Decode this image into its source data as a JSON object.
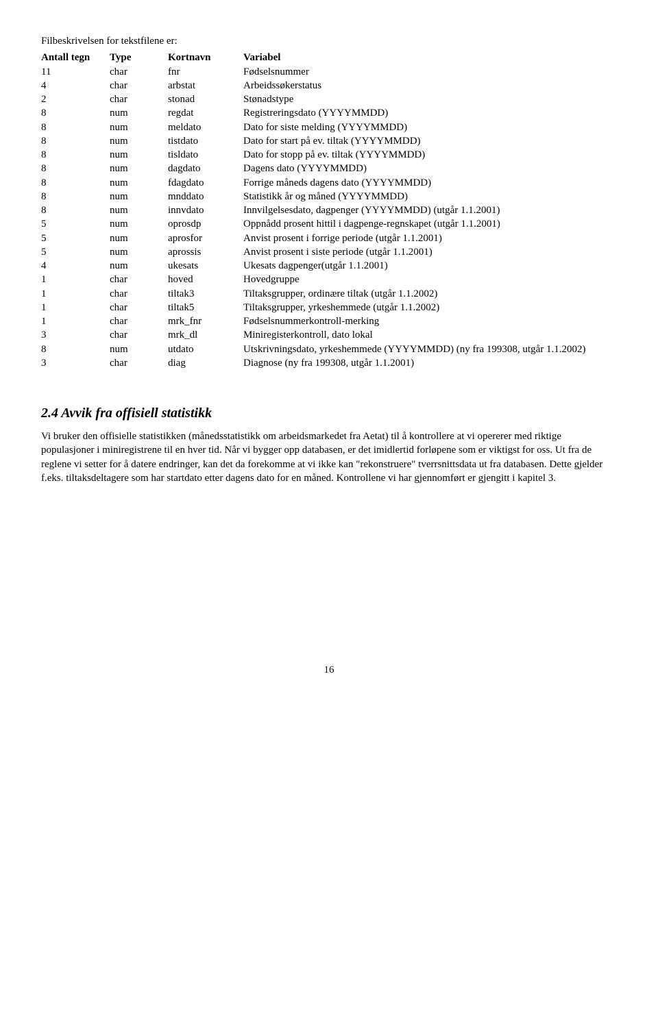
{
  "intro": "Filbeskrivelsen for tekstfilene er:",
  "headers": {
    "antall": "Antall tegn",
    "type": "Type",
    "kortnavn": "Kortnavn",
    "variabel": "Variabel"
  },
  "rows": [
    {
      "a": "11",
      "t": "char",
      "k": "fnr",
      "v": "Fødselsnummer"
    },
    {
      "a": "4",
      "t": "char",
      "k": "arbstat",
      "v": "Arbeidssøkerstatus"
    },
    {
      "a": "2",
      "t": "char",
      "k": "stonad",
      "v": "Stønadstype"
    },
    {
      "a": "8",
      "t": "num",
      "k": "regdat",
      "v": "Registreringsdato (YYYYMMDD)"
    },
    {
      "a": "8",
      "t": "num",
      "k": "meldato",
      "v": "Dato for siste melding (YYYYMMDD)"
    },
    {
      "a": "8",
      "t": "num",
      "k": "tistdato",
      "v": "Dato for start på ev. tiltak (YYYYMMDD)"
    },
    {
      "a": "8",
      "t": "num",
      "k": "tisldato",
      "v": "Dato for stopp på ev. tiltak (YYYYMMDD)"
    },
    {
      "a": "8",
      "t": "num",
      "k": "dagdato",
      "v": "Dagens dato (YYYYMMDD)"
    },
    {
      "a": "8",
      "t": "num",
      "k": "fdagdato",
      "v": "Forrige måneds dagens dato (YYYYMMDD)"
    },
    {
      "a": "8",
      "t": "num",
      "k": "mnddato",
      "v": "Statistikk år og måned (YYYYMMDD)"
    },
    {
      "a": "8",
      "t": "num",
      "k": "innvdato",
      "v": "Innvilgelsesdato, dagpenger (YYYYMMDD) (utgår 1.1.2001)"
    },
    {
      "a": "5",
      "t": "num",
      "k": "oprosdp",
      "v": "Oppnådd prosent hittil i dagpenge-regnskapet (utgår 1.1.2001)"
    },
    {
      "a": "5",
      "t": "num",
      "k": "aprosfor",
      "v": "Anvist prosent i forrige periode (utgår 1.1.2001)"
    },
    {
      "a": "5",
      "t": "num",
      "k": "aprossis",
      "v": "Anvist prosent i siste periode (utgår 1.1.2001)"
    },
    {
      "a": "4",
      "t": "num",
      "k": "ukesats",
      "v": "Ukesats dagpenger(utgår 1.1.2001)"
    },
    {
      "a": "1",
      "t": "char",
      "k": "hoved",
      "v": "Hovedgruppe"
    },
    {
      "a": "1",
      "t": "char",
      "k": "tiltak3",
      "v": "Tiltaksgrupper, ordinære tiltak (utgår 1.1.2002)"
    },
    {
      "a": "1",
      "t": "char",
      "k": "tiltak5",
      "v": "Tiltaksgrupper, yrkeshemmede (utgår 1.1.2002)"
    },
    {
      "a": "1",
      "t": "char",
      "k": "mrk_fnr",
      "v": "Fødselsnummerkontroll-merking"
    },
    {
      "a": "3",
      "t": "char",
      "k": "mrk_dl",
      "v": "Miniregisterkontroll, dato lokal"
    },
    {
      "a": "8",
      "t": "num",
      "k": "utdato",
      "v": "Utskrivningsdato, yrkeshemmede (YYYYMMDD) (ny fra 199308, utgår 1.1.2002)"
    },
    {
      "a": "3",
      "t": "char",
      "k": "diag",
      "v": "Diagnose (ny fra 199308, utgår 1.1.2001)"
    }
  ],
  "section_title": "2.4 Avvik fra offisiell statistikk",
  "body": "Vi bruker den offisielle statistikken (månedsstatistikk om arbeidsmarkedet fra Aetat) til å kontrollere at vi opererer med riktige populasjoner i miniregistrene til en hver tid. Når vi bygger opp databasen, er det imidlertid forløpene som er viktigst for oss. Ut fra de reglene vi setter for å datere endringer, kan det da forekomme at vi ikke kan \"rekonstruere\" tverrsnittsdata ut fra databasen. Dette gjelder f.eks. tiltaksdeltagere som har startdato etter dagens dato for en måned. Kontrollene vi har gjennomført er gjengitt i kapitel 3.",
  "page_number": "16"
}
